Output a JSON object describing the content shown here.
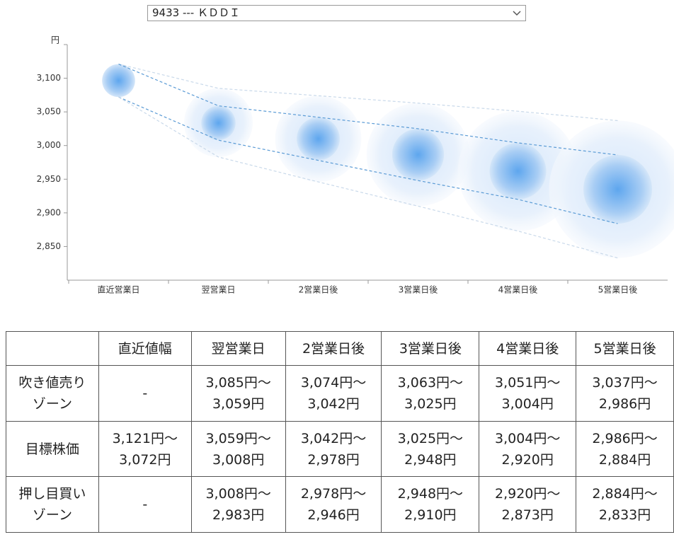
{
  "selector": {
    "label": "9433 --- ＫＤＤＩ"
  },
  "chart_data": {
    "type": "bubble-range",
    "y_unit": "円",
    "categories": [
      "直近営業日",
      "翌営業日",
      "2営業日後",
      "3営業日後",
      "4営業日後",
      "5営業日後"
    ],
    "ylim": [
      2800,
      3150
    ],
    "yticks": [
      {
        "value": 2850,
        "label": "2,850"
      },
      {
        "value": 2900,
        "label": "2,900"
      },
      {
        "value": 2950,
        "label": "2,950"
      },
      {
        "value": 3000,
        "label": "3,000"
      },
      {
        "value": 3050,
        "label": "3,050"
      },
      {
        "value": 3100,
        "label": "3,100"
      }
    ],
    "series": [
      {
        "color": "#c9d9ea",
        "values": [
          3121,
          3085,
          3074,
          3063,
          3051,
          3037
        ]
      },
      {
        "color": "#5b9bd5",
        "values": [
          3121,
          3059,
          3042,
          3025,
          3004,
          2986
        ]
      },
      {
        "color": "#5b9bd5",
        "values": [
          3072,
          3008,
          2978,
          2948,
          2920,
          2884
        ]
      },
      {
        "color": "#c9d9ea",
        "values": [
          3072,
          2983,
          2946,
          2910,
          2873,
          2833
        ]
      }
    ]
  },
  "table": {
    "columns": [
      "直近値幅",
      "翌営業日",
      "2営業日後",
      "3営業日後",
      "4営業日後",
      "5営業日後"
    ],
    "rows": [
      {
        "label": [
          "吹き値売り",
          "ゾーン"
        ],
        "cells": [
          [
            "-"
          ],
          [
            "3,085円～",
            "3,059円"
          ],
          [
            "3,074円～",
            "3,042円"
          ],
          [
            "3,063円～",
            "3,025円"
          ],
          [
            "3,051円～",
            "3,004円"
          ],
          [
            "3,037円～",
            "2,986円"
          ]
        ]
      },
      {
        "label": [
          "目標株価"
        ],
        "cells": [
          [
            "3,121円～",
            "3,072円"
          ],
          [
            "3,059円～",
            "3,008円"
          ],
          [
            "3,042円～",
            "2,978円"
          ],
          [
            "3,025円～",
            "2,948円"
          ],
          [
            "3,004円～",
            "2,920円"
          ],
          [
            "2,986円～",
            "2,884円"
          ]
        ]
      },
      {
        "label": [
          "押し目買い",
          "ゾーン"
        ],
        "cells": [
          [
            "-"
          ],
          [
            "3,008円～",
            "2,983円"
          ],
          [
            "2,978円～",
            "2,946円"
          ],
          [
            "2,948円～",
            "2,910円"
          ],
          [
            "2,920円～",
            "2,873円"
          ],
          [
            "2,884円～",
            "2,833円"
          ]
        ]
      }
    ]
  }
}
